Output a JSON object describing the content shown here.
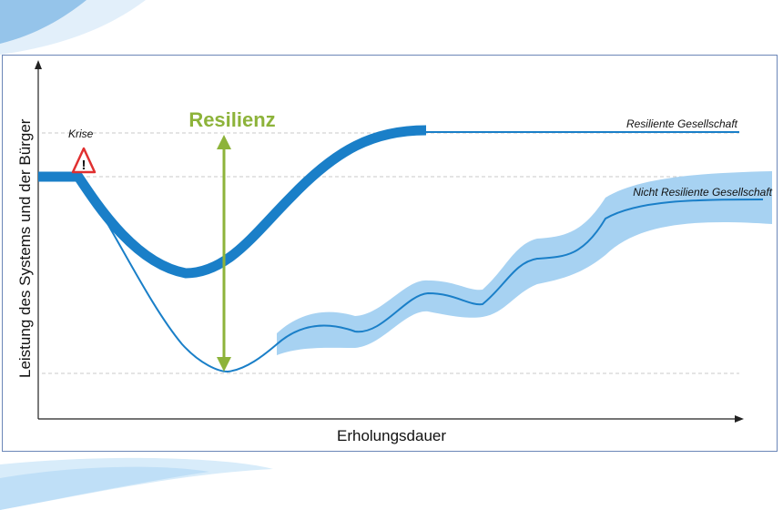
{
  "diagram": {
    "title": "Resilienz",
    "crisis_label": "Krise",
    "x_axis_label": "Erholungsdauer",
    "y_axis_label": "Leistung des Systems und der Bürger",
    "series": [
      {
        "name": "Resiliente Gesellschaft"
      },
      {
        "name": "Nicht Resiliente Gesellschaft"
      }
    ],
    "warning_symbol": "!",
    "icons": [
      "warning-triangle-icon"
    ],
    "colors": {
      "line": "#1a7fc8",
      "band": "#a7d2f2",
      "accent": "#8db33a",
      "warning": "#e03030",
      "frame": "#6b86b8",
      "dashed": "#c8c8c8"
    }
  }
}
